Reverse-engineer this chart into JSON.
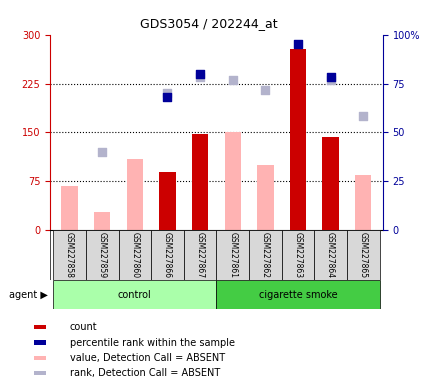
{
  "title": "GDS3054 / 202244_at",
  "samples": [
    "GSM227858",
    "GSM227859",
    "GSM227860",
    "GSM227866",
    "GSM227867",
    "GSM227861",
    "GSM227862",
    "GSM227863",
    "GSM227864",
    "GSM227865"
  ],
  "groups": [
    "control",
    "control",
    "control",
    "control",
    "control",
    "cigarette smoke",
    "cigarette smoke",
    "cigarette smoke",
    "cigarette smoke",
    "cigarette smoke"
  ],
  "count_values": [
    null,
    null,
    null,
    90,
    148,
    null,
    null,
    278,
    143,
    null
  ],
  "absent_value": [
    68,
    28,
    110,
    null,
    null,
    150,
    100,
    null,
    null,
    85
  ],
  "absent_rank": [
    null,
    120,
    null,
    210,
    235,
    230,
    215,
    null,
    230,
    175
  ],
  "percentile_rank_present": [
    null,
    null,
    null,
    205,
    240,
    null,
    null,
    285,
    235,
    null
  ],
  "ylim_left": [
    0,
    300
  ],
  "ylim_right": [
    0,
    100
  ],
  "yticks_left": [
    0,
    75,
    150,
    225,
    300
  ],
  "yticks_right": [
    0,
    25,
    50,
    75,
    100
  ],
  "hlines": [
    75,
    150,
    225
  ],
  "color_count": "#cc0000",
  "color_percentile": "#000099",
  "color_absent_value": "#ffb3b3",
  "color_absent_rank": "#b3b3cc",
  "bg_color": "#d8d8d8",
  "control_bg": "#aaffaa",
  "smoke_bg": "#44cc44",
  "bar_width": 0.5,
  "legend_items": [
    {
      "label": "count",
      "color": "#cc0000"
    },
    {
      "label": "percentile rank within the sample",
      "color": "#000099"
    },
    {
      "label": "value, Detection Call = ABSENT",
      "color": "#ffb3b3"
    },
    {
      "label": "rank, Detection Call = ABSENT",
      "color": "#b3b3cc"
    }
  ]
}
